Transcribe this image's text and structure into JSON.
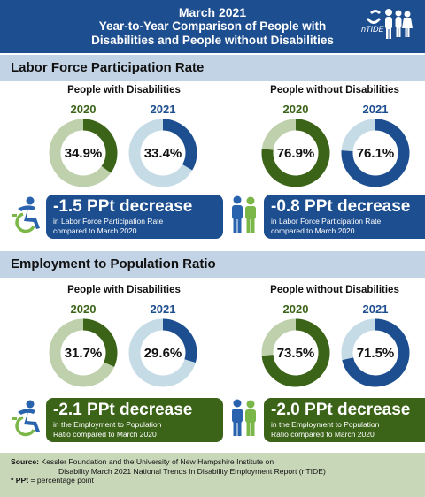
{
  "header": {
    "line1": "March 2021",
    "line2": "Year-to-Year Comparison of People with",
    "line3": "Disabilities and People without Disabilities",
    "logo_text": "nTIDE"
  },
  "colors": {
    "blue": "#1d4e8f",
    "light_blue": "#c5dbe6",
    "green": "#3c6419",
    "light_green": "#bfd0ad",
    "section_bar": "#c3d3e6",
    "source_bg": "#c9d7b9"
  },
  "icons": {
    "disability": "accessibility-icon",
    "no_disability": "people-icon"
  },
  "sections": [
    {
      "title": "Labor Force Participation Rate",
      "groups": [
        {
          "title": "People with Disabilities",
          "year_a": "2020",
          "year_b": "2021",
          "value_a_label": "34.9%",
          "value_b_label": "33.4%",
          "change": "-1.5 PPt decrease",
          "detail_1": "in Labor Force Participation Rate",
          "detail_2": "compared to March 2020"
        },
        {
          "title": "People without Disabilities",
          "year_a": "2020",
          "year_b": "2021",
          "value_a_label": "76.9%",
          "value_b_label": "76.1%",
          "change": "-0.8 PPt decrease",
          "detail_1": "in Labor Force Participation Rate",
          "detail_2": "compared to March 2020"
        }
      ]
    },
    {
      "title": "Employment to Population Ratio",
      "groups": [
        {
          "title": "People with Disabilities",
          "year_a": "2020",
          "year_b": "2021",
          "value_a_label": "31.7%",
          "value_b_label": "29.6%",
          "change": "-2.1 PPt decrease",
          "detail_1": "in the Employment to Population",
          "detail_2": "Ratio compared to March 2020"
        },
        {
          "title": "People without Disabilities",
          "year_a": "2020",
          "year_b": "2021",
          "value_a_label": "73.5%",
          "value_b_label": "71.5%",
          "change": "-2.0 PPt decrease",
          "detail_1": "in the Employment to Population",
          "detail_2": "Ratio compared to March 2020"
        }
      ]
    }
  ],
  "source": {
    "label": "Source:",
    "text1": "Kessler Foundation and the University of New Hampshire Institute on",
    "text2": "Disability March 2021 National Trends In Disability Employment Report (nTIDE)",
    "ppt_label": "* PPt",
    "ppt_text": "= percentage point"
  },
  "chart_data": [
    {
      "type": "pie",
      "title": "Labor Force Participation Rate — People with Disabilities",
      "categories": [
        "2020",
        "2021"
      ],
      "values": [
        34.9,
        33.4
      ]
    },
    {
      "type": "pie",
      "title": "Labor Force Participation Rate — People without Disabilities",
      "categories": [
        "2020",
        "2021"
      ],
      "values": [
        76.9,
        76.1
      ]
    },
    {
      "type": "pie",
      "title": "Employment to Population Ratio — People with Disabilities",
      "categories": [
        "2020",
        "2021"
      ],
      "values": [
        31.7,
        29.6
      ]
    },
    {
      "type": "pie",
      "title": "Employment to Population Ratio — People without Disabilities",
      "categories": [
        "2020",
        "2021"
      ],
      "values": [
        73.5,
        71.5
      ]
    }
  ]
}
